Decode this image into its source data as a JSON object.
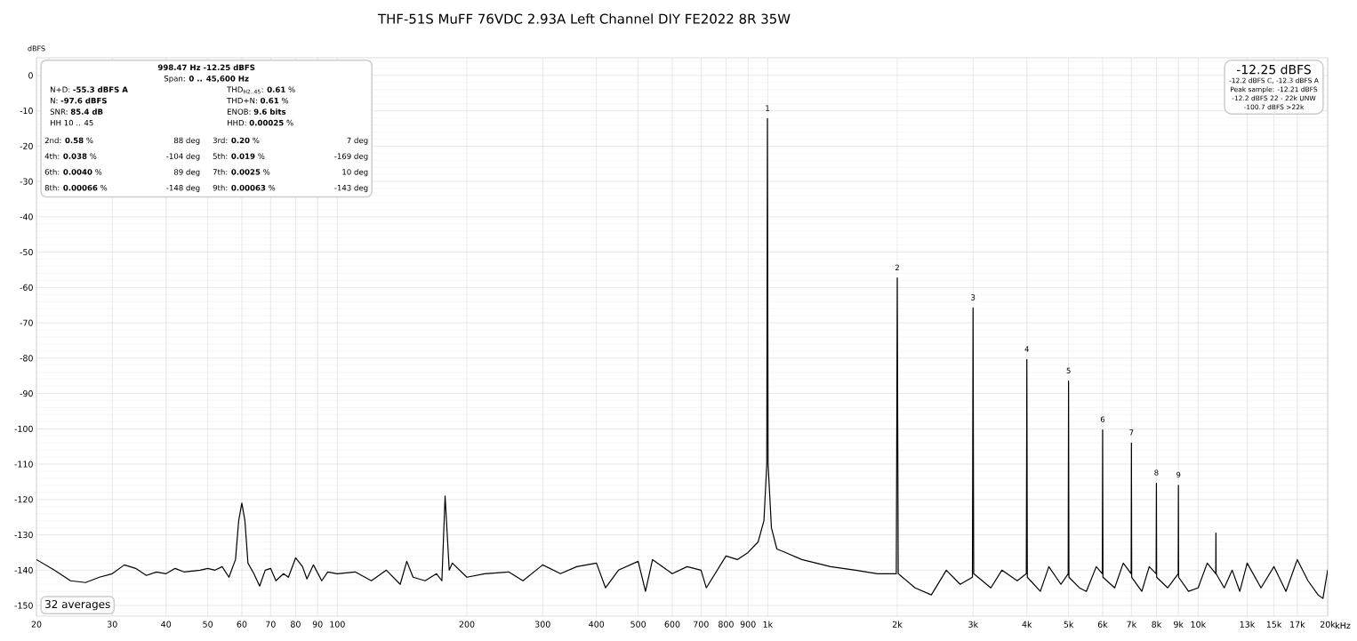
{
  "chart_data": {
    "type": "line",
    "title": "THF-51S MuFF 76VDC 2.93A Left Channel DIY FE2022 8R 35W",
    "xlabel": "kHz",
    "ylabel": "dBFS",
    "log": "x",
    "grid": true,
    "xlim": [
      20,
      20000
    ],
    "ylim": [
      -153,
      5
    ],
    "xticks": [
      20,
      30,
      40,
      50,
      60,
      70,
      80,
      90,
      100,
      200,
      300,
      400,
      500,
      600,
      700,
      800,
      900,
      {
        "value": 1000,
        "label": "1k"
      },
      {
        "value": 2000,
        "label": "2k"
      },
      {
        "value": 3000,
        "label": "3k"
      },
      {
        "value": 4000,
        "label": "4k"
      },
      {
        "value": 5000,
        "label": "5k"
      },
      {
        "value": 6000,
        "label": "6k"
      },
      {
        "value": 7000,
        "label": "7k"
      },
      {
        "value": 8000,
        "label": "8k"
      },
      {
        "value": 9000,
        "label": "9k"
      },
      {
        "value": 10000,
        "label": "10k"
      },
      {
        "value": 13000,
        "label": "13k"
      },
      {
        "value": 15000,
        "label": "15k"
      },
      {
        "value": 17000,
        "label": "17k"
      },
      {
        "value": 20000,
        "label": "20k"
      }
    ],
    "yticks": [
      0,
      -10,
      -20,
      -30,
      -40,
      -50,
      -60,
      -70,
      -80,
      -90,
      -100,
      -110,
      -120,
      -130,
      -140,
      -150
    ],
    "series": [
      {
        "color": "#000000",
        "x": [
          20,
          22,
          24,
          26,
          28,
          30,
          32,
          34,
          36,
          38,
          40,
          42,
          44,
          48,
          50,
          52,
          54,
          56,
          58,
          59,
          60,
          61,
          62,
          64,
          66,
          68,
          70,
          72,
          75,
          77,
          80,
          83,
          85,
          88,
          92,
          95,
          100,
          110,
          120,
          130,
          140,
          145,
          150,
          160,
          170,
          175,
          178,
          182,
          185,
          200,
          220,
          250,
          270,
          300,
          330,
          360,
          400,
          420,
          450,
          500,
          520,
          540,
          600,
          650,
          700,
          720,
          800,
          850,
          900,
          950,
          980,
          995,
          998.47,
          1002,
          1020,
          1050,
          1100,
          1200,
          1400,
          1600,
          1800,
          1990,
          2000,
          2010,
          2200,
          2400,
          2600,
          2800,
          2990,
          3000,
          3010,
          3300,
          3500,
          3800,
          3990,
          4000,
          4010,
          4300,
          4500,
          4800,
          4990,
          5000,
          5010,
          5300,
          5500,
          5800,
          5990,
          6000,
          6010,
          6400,
          6700,
          6990,
          7000,
          7010,
          7400,
          7700,
          7990,
          8000,
          8010,
          8500,
          8990,
          9000,
          9010,
          9500,
          10000,
          10500,
          10990,
          11000,
          11010,
          11500,
          12000,
          12500,
          13000,
          14000,
          15000,
          16000,
          17000,
          18000,
          19000,
          19500,
          20000
        ],
        "values": [
          -137,
          -140,
          -143,
          -143.5,
          -142,
          -141,
          -138.5,
          -139.5,
          -141.5,
          -140.5,
          -141,
          -139.5,
          -140.5,
          -140,
          -139.5,
          -140,
          -139,
          -142,
          -137,
          -126,
          -121,
          -126,
          -138,
          -141,
          -144.5,
          -140,
          -139.5,
          -143,
          -141,
          -142,
          -136.5,
          -139,
          -142.5,
          -138.5,
          -143,
          -140.5,
          -141,
          -140.5,
          -143,
          -140,
          -144,
          -137.5,
          -142,
          -143,
          -141,
          -143,
          -119,
          -140,
          -138,
          -142,
          -141,
          -140.5,
          -143,
          -138.5,
          -141,
          -139,
          -138,
          -145,
          -140,
          -137.5,
          -146,
          -137,
          -141,
          -139,
          -140,
          -145,
          -136,
          -137,
          -135,
          -132,
          -126,
          -110,
          -12.2,
          -110,
          -128,
          -134,
          -135,
          -137,
          -139,
          -140,
          -141,
          -141,
          -57.3,
          -141,
          -145,
          -147,
          -140,
          -144,
          -142,
          -65.8,
          -141,
          -145,
          -140,
          -143,
          -141,
          -80.4,
          -142,
          -146,
          -139,
          -144,
          -141,
          -86.5,
          -142,
          -145,
          -146,
          -139,
          -141,
          -100.3,
          -142,
          -145,
          -138,
          -141,
          -104,
          -142,
          -146,
          -139,
          -141,
          -115.4,
          -142,
          -145,
          -141,
          -116,
          -142,
          -146,
          -145,
          -138,
          -141,
          -129.5,
          -141,
          -145,
          -140,
          -146,
          -138,
          -145,
          -139,
          -146,
          -137,
          -143,
          -147,
          -148,
          -140
        ]
      }
    ],
    "annotations": [
      "998.47 Hz  -12.25 dBFS",
      "Span: **0 .. 45,600 Hz**",
      "N+D: **-55.3 dBFS A**",
      "THD$_{H2..45}$: **0.61** %",
      "N: **-97.6 dBFS**",
      "THD+N: **0.61** %",
      "SNR: **85.4 dB**",
      "ENOB: **9.6 bits**",
      "HH 10 .. 45",
      "HHD: **0.00025** %",
      "2nd: **0.58** %",
      "88 deg",
      "3rd: **0.20** %",
      "7 deg",
      "4th: **0.038** %",
      "-104 deg",
      "5th: **0.019** %",
      "-169 deg",
      "6th: **0.0040** %",
      "89 deg",
      "7th: **0.0025** %",
      "10 deg",
      "8th: **0.00066** %",
      "-148 deg",
      "9th: **0.00063** %",
      "-143 deg",
      "-12.25 dBFS",
      "-12.2 dBFS C, -12.3 dBFS A",
      "Peak sample: -12.21 dBFS",
      "-12.2 dBFS 22 - 22k UNW",
      "-100.7 dBFS >22k",
      "32 averages",
      {
        "text": "1",
        "x": 998.47,
        "y": -12.2
      },
      {
        "text": "2",
        "x": 2000,
        "y": -57.3
      },
      {
        "text": "3",
        "x": 3000,
        "y": -65.8
      },
      {
        "text": "4",
        "x": 4000,
        "y": -80.4
      },
      {
        "text": "5",
        "x": 5000,
        "y": -86.5
      },
      {
        "text": "6",
        "x": 6000,
        "y": -100.3
      },
      {
        "text": "7",
        "x": 7000,
        "y": -104
      },
      {
        "text": "8",
        "x": 8000,
        "y": -115.4
      },
      {
        "text": "9",
        "x": 9000,
        "y": -116
      }
    ]
  }
}
